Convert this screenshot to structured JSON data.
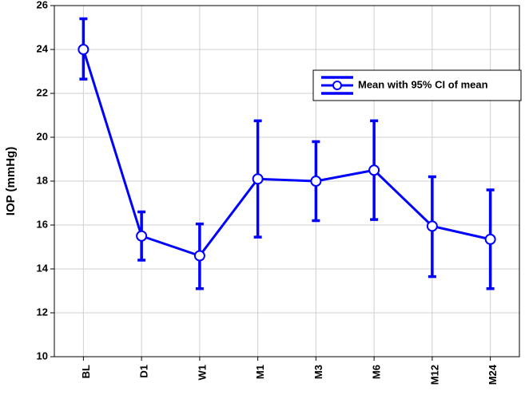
{
  "chart_data": {
    "type": "line",
    "ylabel": "IOP (mmHg)",
    "categories": [
      "BL",
      "D1",
      "W1",
      "M1",
      "M3",
      "M6",
      "M12",
      "M24"
    ],
    "series": [
      {
        "name": "Mean with 95% CI of mean",
        "color": "#0000ff",
        "values": [
          24.0,
          15.5,
          14.6,
          18.1,
          18.0,
          18.5,
          15.95,
          15.35
        ],
        "ci_lower": [
          22.65,
          14.4,
          13.1,
          15.45,
          16.2,
          16.25,
          13.65,
          13.1
        ],
        "ci_upper": [
          25.4,
          16.6,
          16.05,
          20.75,
          19.8,
          20.75,
          18.2,
          17.6
        ]
      }
    ],
    "ylim": [
      10,
      26
    ],
    "yticks": [
      10,
      12,
      14,
      16,
      18,
      20,
      22,
      24,
      26
    ],
    "grid": true,
    "legend": "upper right"
  }
}
